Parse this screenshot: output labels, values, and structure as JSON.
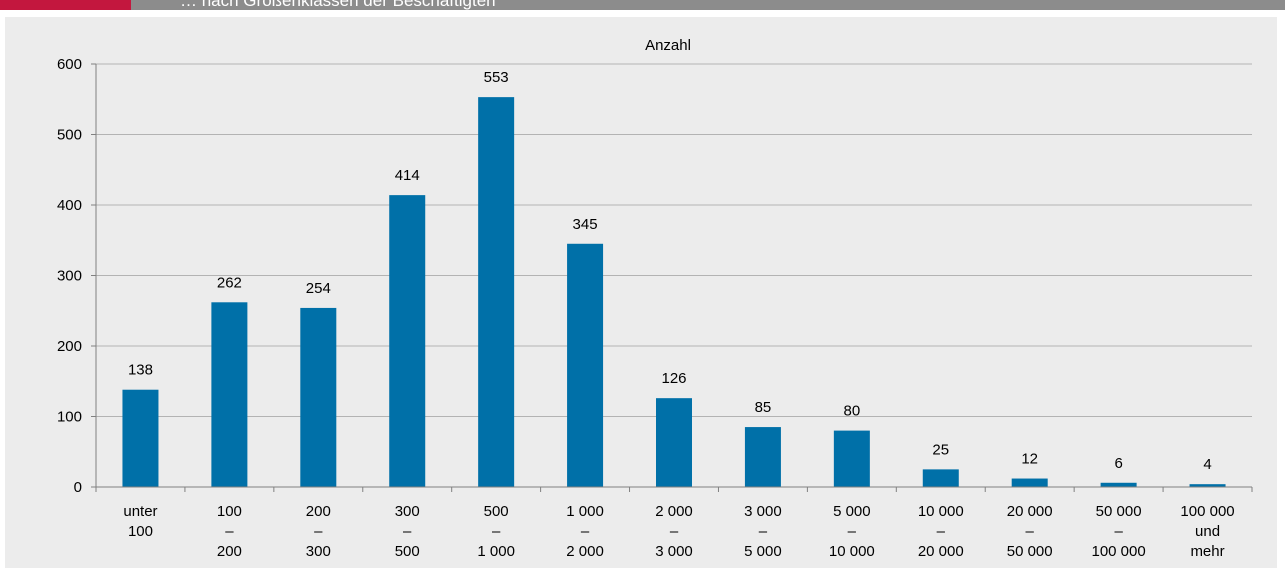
{
  "header": {
    "title": "… nach Größenklassen der Beschäftigten",
    "accent_color": "#c3173e",
    "bar_color": "#8c8c8c"
  },
  "chart_data": {
    "type": "bar",
    "title": "",
    "ylabel": "Anzahl",
    "xlabel": "",
    "ylim": [
      0,
      600
    ],
    "yticks": [
      0,
      100,
      200,
      300,
      400,
      500,
      600
    ],
    "grid": true,
    "bar_color": "#0070a8",
    "categories": [
      [
        "unter",
        "100"
      ],
      [
        "100",
        "–",
        "200"
      ],
      [
        "200",
        "–",
        "300"
      ],
      [
        "300",
        "–",
        "500"
      ],
      [
        "500",
        "–",
        "1 000"
      ],
      [
        "1 000",
        "–",
        "2 000"
      ],
      [
        "2 000",
        "–",
        "3 000"
      ],
      [
        "3 000",
        "–",
        "5 000"
      ],
      [
        "5 000",
        "–",
        "10 000"
      ],
      [
        "10 000",
        "–",
        "20 000"
      ],
      [
        "20 000",
        "–",
        "50 000"
      ],
      [
        "50 000",
        "–",
        "100 000"
      ],
      [
        "100 000",
        "und",
        "mehr"
      ]
    ],
    "values": [
      138,
      262,
      254,
      414,
      553,
      345,
      126,
      85,
      80,
      25,
      12,
      6,
      4
    ]
  }
}
